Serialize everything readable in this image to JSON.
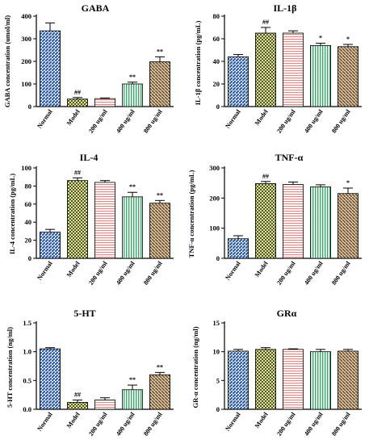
{
  "colors": {
    "normal": "#2f5fa8",
    "model": "#c9c23a",
    "dose200": "#d98c8c",
    "dose400": "#3aa86a",
    "dose800": "#8a6a3a"
  },
  "chart_data": [
    {
      "type": "bar",
      "title": "GABA",
      "ylabel": "GABA concentration (umol/ml)",
      "categories": [
        "Normal",
        "Model",
        "200 ug/ml",
        "400 ug/ml",
        "800 ug/ml"
      ],
      "values": [
        335,
        33,
        35,
        100,
        198
      ],
      "errors": [
        35,
        7,
        3,
        8,
        22
      ],
      "annotations": [
        "",
        "##",
        "",
        "**",
        "**"
      ],
      "ylim": [
        0,
        400
      ],
      "yticks": [
        0,
        100,
        200,
        300,
        400
      ]
    },
    {
      "type": "bar",
      "title": "IL-1β",
      "ylabel": "IL-1β concentration (pg/mL)",
      "categories": [
        "Normal",
        "Model",
        "200 ug/ml",
        "400 ug/ml",
        "800 ug/ml"
      ],
      "values": [
        44,
        65,
        65,
        54,
        53
      ],
      "errors": [
        2,
        5,
        2,
        2,
        2
      ],
      "annotations": [
        "",
        "##",
        "",
        "*",
        "*"
      ],
      "ylim": [
        0,
        80
      ],
      "yticks": [
        0,
        20,
        40,
        60,
        80
      ]
    },
    {
      "type": "bar",
      "title": "IL-4",
      "ylabel": "IL-4 concentration (pg/mL)",
      "categories": [
        "Normal",
        "Model",
        "200 ug/ml",
        "400 ug/ml",
        "800 ug/ml"
      ],
      "values": [
        29,
        86,
        84,
        68,
        61
      ],
      "errors": [
        3,
        3,
        2,
        5,
        3
      ],
      "annotations": [
        "",
        "##",
        "",
        "**",
        "**"
      ],
      "ylim": [
        0,
        100
      ],
      "yticks": [
        0,
        20,
        40,
        60,
        80,
        100
      ]
    },
    {
      "type": "bar",
      "title": "TNF-α",
      "ylabel": "TNF-α concentration (pg/mL)",
      "categories": [
        "Normal",
        "Model",
        "200 ug/ml",
        "400 ug/ml",
        "800 ug/ml"
      ],
      "values": [
        65,
        248,
        245,
        237,
        215
      ],
      "errors": [
        10,
        7,
        8,
        7,
        18
      ],
      "annotations": [
        "",
        "##",
        "",
        "",
        "*"
      ],
      "ylim": [
        0,
        300
      ],
      "yticks": [
        0,
        100,
        200,
        300
      ]
    },
    {
      "type": "bar",
      "title": "5-HT",
      "ylabel": "5-HT concentration (ng/ml)",
      "categories": [
        "Normal",
        "Model",
        "200 ug/ml",
        "400 ug/ml",
        "800 ug/ml"
      ],
      "values": [
        1.05,
        0.12,
        0.16,
        0.34,
        0.6
      ],
      "errors": [
        0.02,
        0.04,
        0.04,
        0.08,
        0.04
      ],
      "annotations": [
        "",
        "##",
        "",
        "**",
        "**"
      ],
      "ylim": [
        0,
        1.5
      ],
      "yticks": [
        0,
        0.5,
        1.0,
        1.5
      ],
      "ytick_labels": [
        "0.0",
        "0.5",
        "1.0",
        "1.5"
      ]
    },
    {
      "type": "bar",
      "title": "GRα",
      "ylabel": "GR-α concentration (ng/ml)",
      "categories": [
        "Normal",
        "Model",
        "200 ug/ml",
        "400 ug/ml",
        "800 ug/ml"
      ],
      "values": [
        10.1,
        10.4,
        10.4,
        10.0,
        10.1
      ],
      "errors": [
        0.3,
        0.3,
        0.1,
        0.4,
        0.3
      ],
      "annotations": [
        "",
        "",
        "",
        "",
        ""
      ],
      "ylim": [
        0,
        15
      ],
      "yticks": [
        0,
        5,
        10,
        15
      ]
    }
  ]
}
